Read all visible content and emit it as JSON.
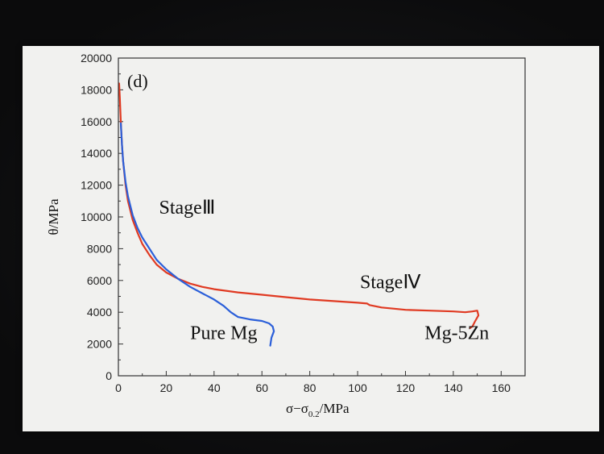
{
  "chart_data": {
    "type": "line",
    "panel_label": "(d)",
    "xlabel_main": "σ−σ",
    "xlabel_sub": "0.2",
    "xlabel_unit": "/MPa",
    "ylabel": "θ/MPa",
    "xlim": [
      0,
      170
    ],
    "ylim": [
      0,
      20000
    ],
    "x_ticks": [
      0,
      20,
      40,
      60,
      80,
      100,
      120,
      140,
      160
    ],
    "y_ticks": [
      0,
      2000,
      4000,
      6000,
      8000,
      10000,
      12000,
      14000,
      16000,
      18000,
      20000
    ],
    "annotations": [
      {
        "text": "StageⅢ",
        "x": 17,
        "y": 10200
      },
      {
        "text": "StageⅣ",
        "x": 101,
        "y": 5500
      },
      {
        "text": "Pure Mg",
        "x": 30,
        "y": 2300
      },
      {
        "text": "Mg-5Zn",
        "x": 128,
        "y": 2300
      }
    ],
    "series": [
      {
        "name": "Mg-5Zn",
        "color": "#e03a22",
        "x": [
          0.3,
          0.6,
          1,
          1.5,
          2,
          3,
          4,
          6,
          8,
          10,
          13,
          16,
          20,
          25,
          30,
          35,
          40,
          45,
          50,
          60,
          70,
          80,
          90,
          100,
          104,
          105,
          110,
          120,
          130,
          140,
          145,
          148,
          150,
          150.5,
          149,
          148,
          147
        ],
        "y": [
          18400,
          17500,
          16000,
          14500,
          13500,
          12000,
          11000,
          9800,
          9000,
          8300,
          7600,
          7000,
          6500,
          6100,
          5800,
          5600,
          5450,
          5350,
          5250,
          5100,
          4950,
          4800,
          4700,
          4600,
          4550,
          4450,
          4300,
          4150,
          4100,
          4050,
          4000,
          4050,
          4100,
          3800,
          3400,
          3100,
          3000
        ]
      },
      {
        "name": "Pure Mg",
        "color": "#2b5fd9",
        "x": [
          1,
          1.5,
          2,
          3,
          4,
          6,
          8,
          10,
          13,
          16,
          20,
          25,
          30,
          35,
          40,
          44,
          47,
          50,
          55,
          60,
          63,
          64.5,
          65,
          64,
          63.5
        ],
        "y": [
          15900,
          14500,
          13500,
          12200,
          11300,
          10100,
          9300,
          8700,
          8000,
          7300,
          6700,
          6100,
          5600,
          5200,
          4800,
          4400,
          4000,
          3700,
          3550,
          3450,
          3300,
          3100,
          2800,
          2400,
          1900
        ]
      }
    ]
  }
}
